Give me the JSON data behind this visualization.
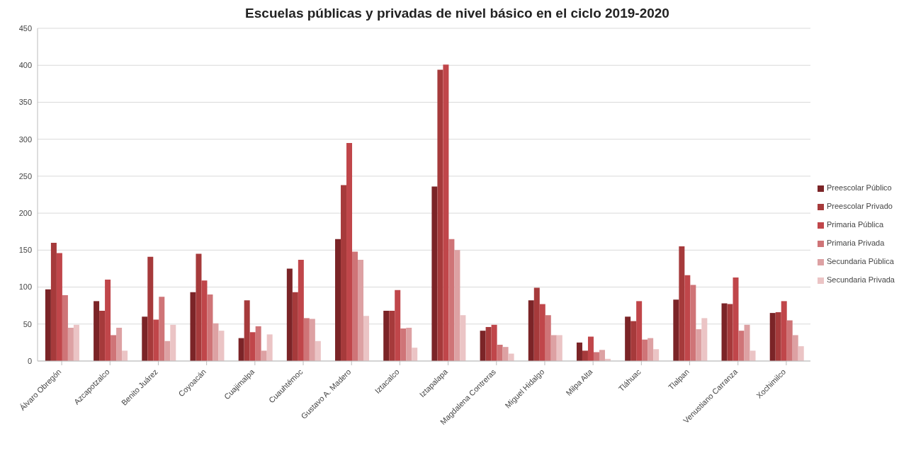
{
  "chart_data": {
    "type": "bar",
    "title": "Escuelas públicas y privadas de nivel básico en el ciclo 2019-2020",
    "categories": [
      "Álvaro Obregón",
      "Azcapotzalco",
      "Benito Juárez",
      "Coyoacán",
      "Cuajimalpa",
      "Cuauhtémoc",
      "Gustavo A. Madero",
      "Iztacalco",
      "Iztapalapa",
      "Magdalena Contreras",
      "Miguel Hidalgo",
      "Milpa Alta",
      "Tláhuac",
      "Tlalpan",
      "Venustiano Carranza",
      "Xochimilco"
    ],
    "series": [
      {
        "name": "Preescolar Público",
        "color": "#7b2427",
        "values": [
          97,
          81,
          60,
          93,
          31,
          125,
          165,
          68,
          236,
          41,
          82,
          25,
          60,
          83,
          78,
          65
        ]
      },
      {
        "name": "Preescolar Privado",
        "color": "#a63a3b",
        "values": [
          160,
          68,
          141,
          145,
          82,
          93,
          238,
          68,
          394,
          46,
          99,
          14,
          54,
          155,
          77,
          66
        ]
      },
      {
        "name": "Primaria Pública",
        "color": "#c0464a",
        "values": [
          146,
          110,
          56,
          109,
          39,
          137,
          295,
          96,
          401,
          49,
          77,
          33,
          81,
          116,
          113,
          81
        ]
      },
      {
        "name": "Primaria Privada",
        "color": "#cf7477",
        "values": [
          89,
          35,
          87,
          90,
          47,
          58,
          148,
          44,
          165,
          22,
          62,
          12,
          29,
          103,
          41,
          55
        ]
      },
      {
        "name": "Secundaria Pública",
        "color": "#dda1a3",
        "values": [
          45,
          45,
          27,
          51,
          14,
          57,
          137,
          45,
          150,
          19,
          35,
          15,
          31,
          43,
          49,
          35
        ]
      },
      {
        "name": "Secundaria Privada",
        "color": "#ebc4c5",
        "values": [
          49,
          14,
          49,
          41,
          36,
          27,
          61,
          18,
          62,
          10,
          35,
          3,
          16,
          58,
          14,
          20
        ]
      }
    ],
    "ylim": [
      0,
      450
    ],
    "yticks": [
      0,
      50,
      100,
      150,
      200,
      250,
      300,
      350,
      400,
      450
    ],
    "grid": "y",
    "legend": "right"
  }
}
